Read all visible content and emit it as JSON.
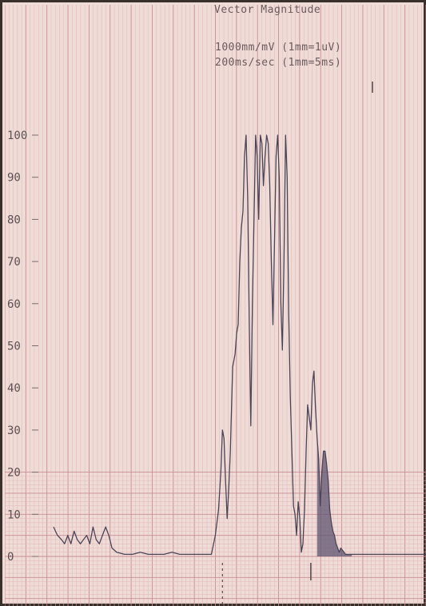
{
  "header": {
    "title": "Vector Magnitude",
    "sensitivity": "1000mm/mV (1mm=1uV)",
    "speed": "200ms/sec (1mm=5ms)"
  },
  "colors": {
    "paper": "#efdcd6",
    "grid_minor": "#e1b6b8",
    "grid_major": "#c98d95",
    "trace": "#4b4457",
    "shading": "#5f5470"
  },
  "chart_data": {
    "type": "line",
    "title": "Vector Magnitude",
    "xlabel": "",
    "ylabel": "",
    "yticks": [
      "0",
      "10",
      "20",
      "30",
      "40",
      "50",
      "60",
      "70",
      "80",
      "90",
      "100"
    ],
    "ylim": [
      0,
      100
    ],
    "x_unit": "ms",
    "xlim": [
      0,
      475
    ],
    "grid": true,
    "series": [
      {
        "x": [
          0,
          5,
          10,
          14,
          18,
          22,
          26,
          30,
          34,
          38,
          42,
          46,
          50,
          54,
          58,
          62,
          66,
          70,
          74,
          80,
          90,
          100,
          110,
          120,
          130,
          140,
          150,
          160,
          170,
          180,
          190,
          200,
          205,
          209,
          212,
          214,
          216,
          218,
          220,
          222,
          224,
          227,
          230,
          232,
          234,
          236,
          238,
          240,
          242,
          244,
          246,
          248,
          250,
          252,
          254,
          256,
          258,
          260,
          262,
          264,
          266,
          268,
          270,
          272,
          274,
          276,
          278,
          280,
          282,
          284,
          286,
          288,
          290,
          292,
          294,
          296,
          298,
          300,
          302,
          304,
          306,
          308,
          310,
          312,
          314,
          316,
          318,
          320,
          322,
          324,
          326,
          328,
          330,
          332,
          334,
          336,
          338,
          340,
          342,
          344,
          346,
          348,
          350,
          352,
          354,
          356,
          358,
          360,
          362,
          364,
          366,
          368,
          370,
          372,
          374,
          376,
          378,
          380,
          385,
          390,
          400,
          420,
          440,
          460,
          475
        ],
        "y": [
          7,
          5,
          4,
          3,
          5,
          3,
          6,
          4,
          3,
          4,
          5,
          3,
          7,
          4,
          3,
          5,
          7,
          5,
          2,
          1,
          0.5,
          0.5,
          1,
          0.5,
          0.5,
          0.5,
          1,
          0.5,
          0.5,
          0.5,
          0.5,
          0.5,
          5,
          11,
          20,
          30,
          28,
          18,
          9,
          16,
          25,
          45,
          48,
          53,
          55,
          70,
          78,
          82,
          95,
          100,
          85,
          55,
          31,
          60,
          80,
          100,
          95,
          80,
          100,
          98,
          88,
          95,
          100,
          98,
          88,
          70,
          55,
          75,
          95,
          100,
          90,
          60,
          49,
          70,
          100,
          90,
          58,
          38,
          25,
          12,
          10,
          5,
          13,
          9,
          1,
          3,
          11,
          25,
          36,
          33,
          30,
          41,
          44,
          35,
          28,
          23,
          12,
          20,
          25,
          25,
          22,
          18,
          11,
          8,
          6,
          5,
          3,
          2,
          1,
          2,
          1.5,
          1,
          0.5,
          0.5,
          0.5,
          0.5,
          0.5,
          0.5,
          0.5,
          0.5,
          0.5,
          0.5,
          0.5,
          0.5,
          0.5
        ]
      }
    ],
    "shaded_region_x": [
      334,
      378
    ]
  }
}
